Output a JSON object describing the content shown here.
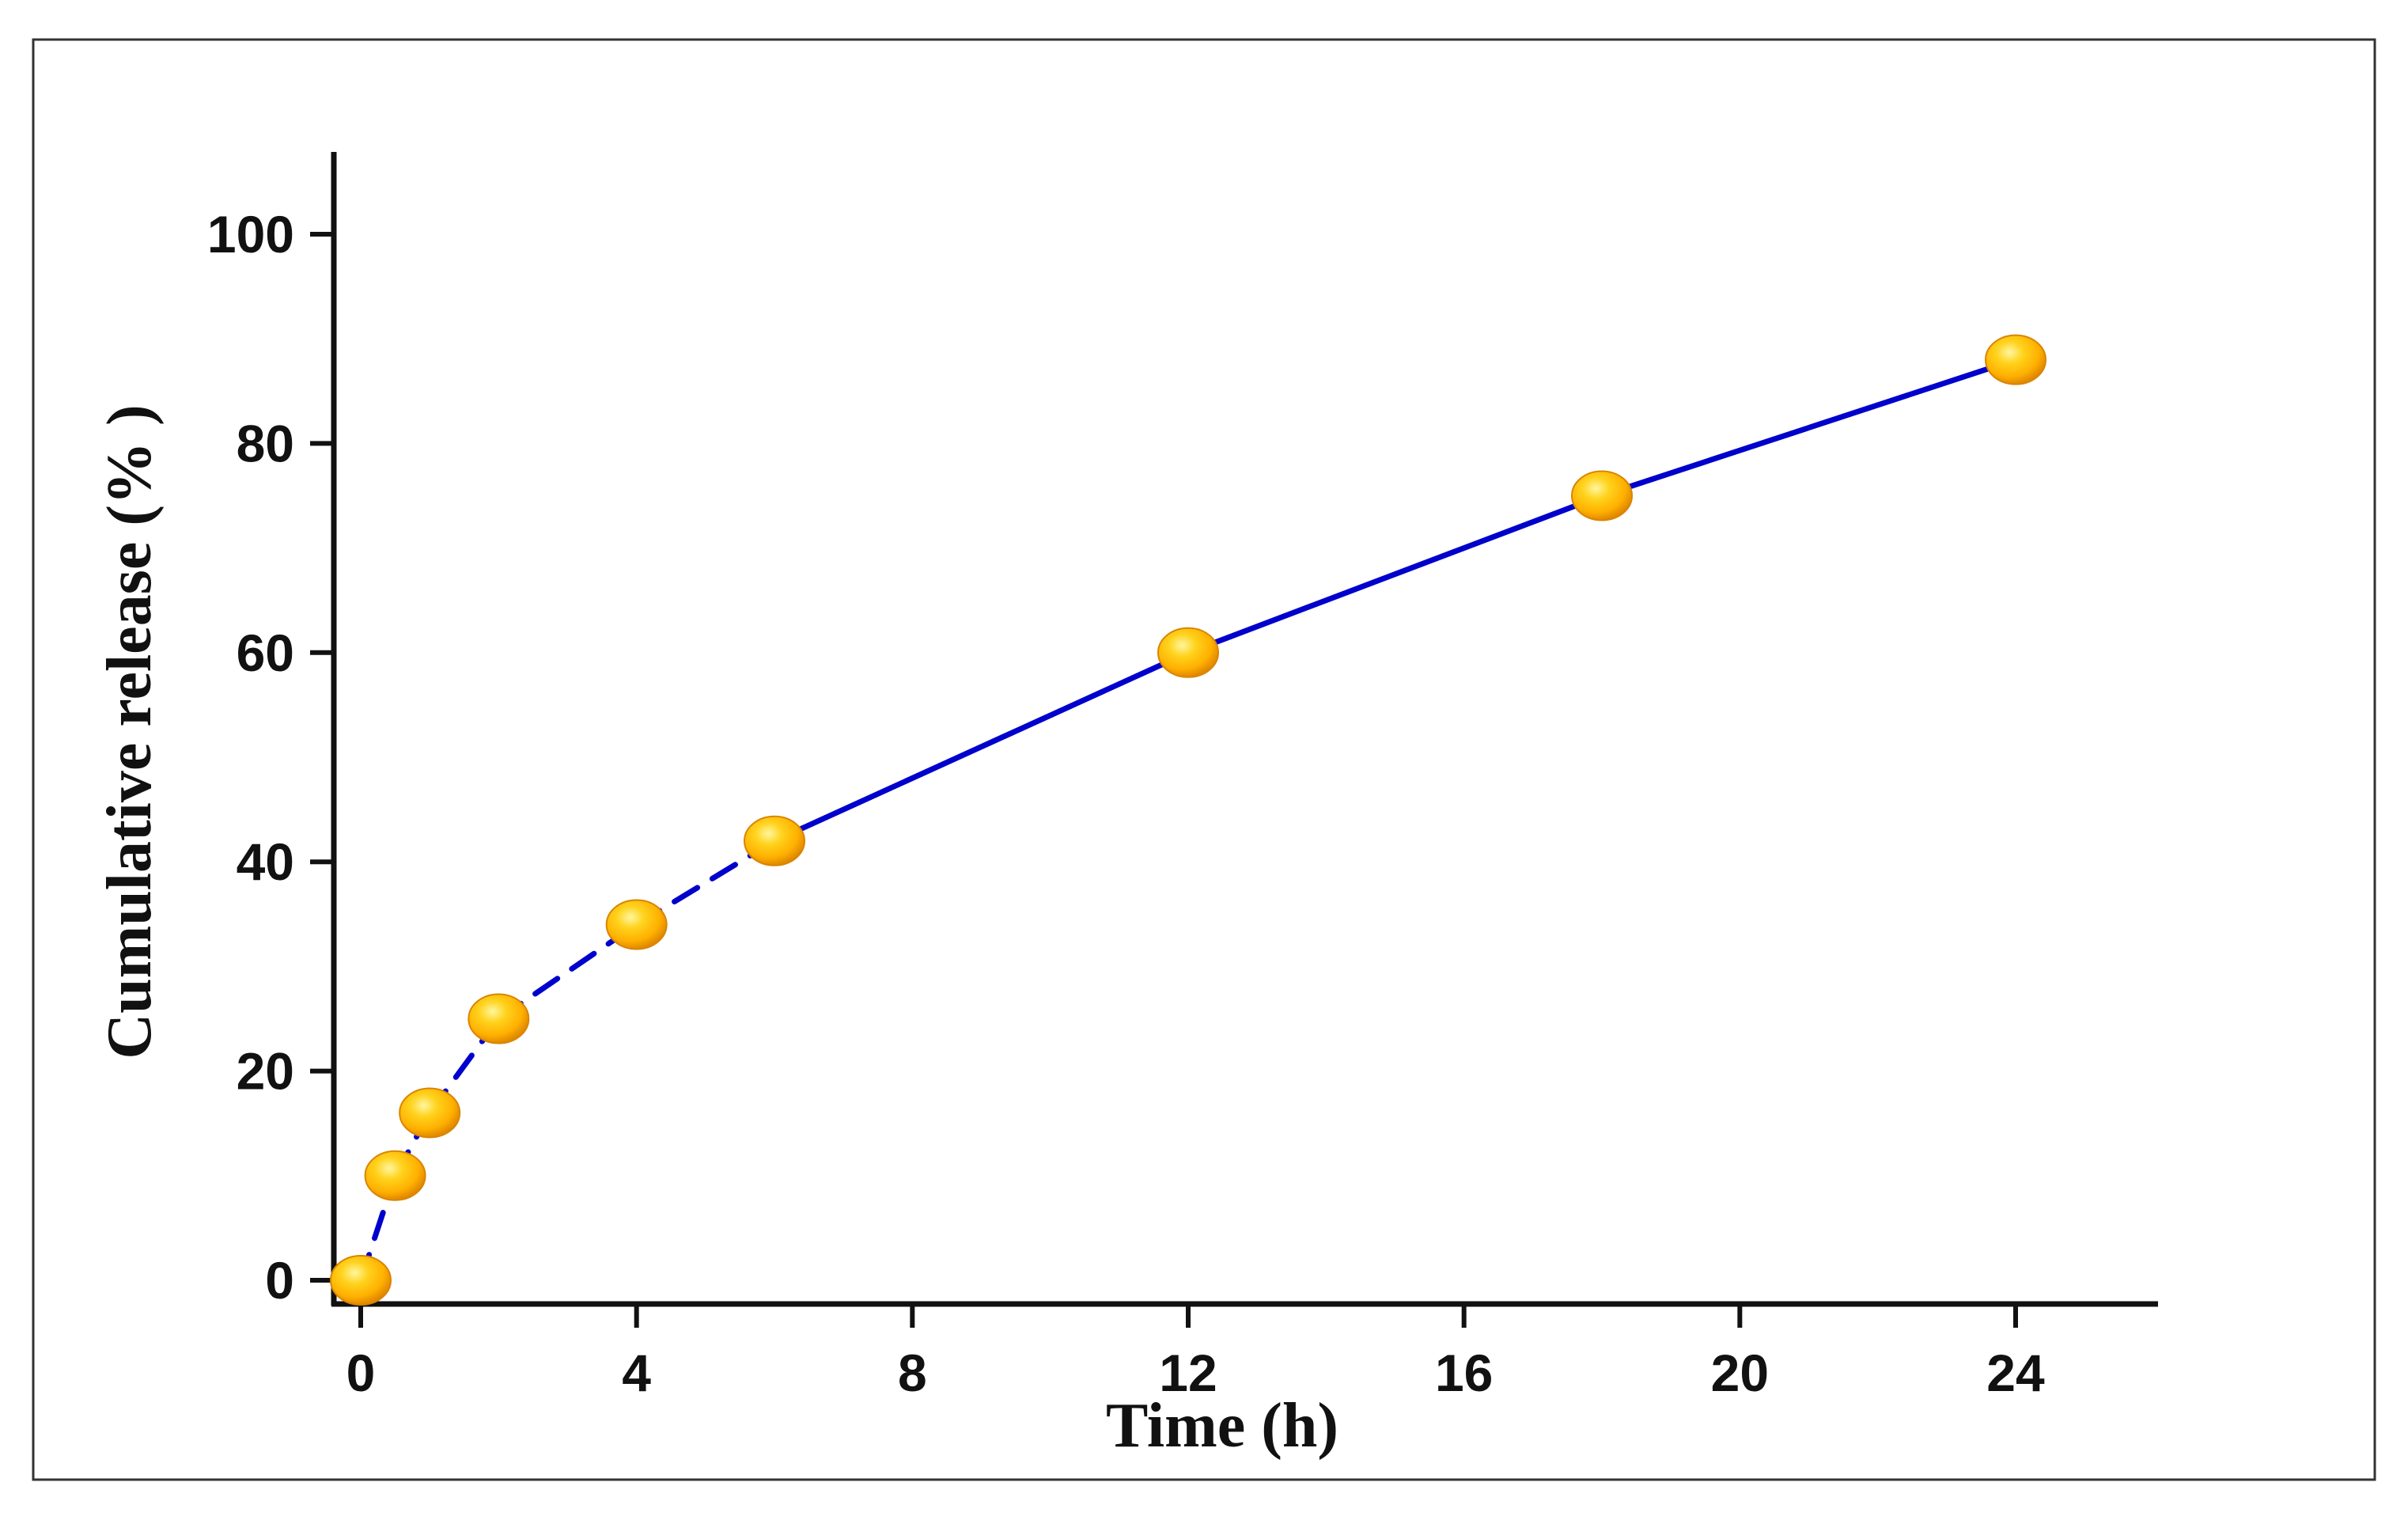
{
  "chart_data": {
    "type": "line",
    "title": "",
    "xlabel": "Time (h)",
    "ylabel": "Cumulative release (% )",
    "xlim": [
      -1,
      26.5
    ],
    "ylim": [
      -2,
      108
    ],
    "x_ticks": [
      0,
      4,
      8,
      12,
      16,
      20,
      24
    ],
    "y_ticks": [
      0,
      20,
      40,
      60,
      80,
      100
    ],
    "x_tick_labels": [
      "0",
      "4",
      "8",
      "12",
      "16",
      "20",
      "24"
    ],
    "y_tick_labels": [
      "0",
      "20",
      "40",
      "60",
      "80",
      "100"
    ],
    "grid": false,
    "legend": "none",
    "series": [
      {
        "x": [
          0,
          0.5,
          1,
          2,
          4,
          6,
          12,
          18,
          24
        ],
        "y": [
          0,
          10,
          16,
          25,
          34,
          42,
          60,
          75,
          88
        ],
        "line_color": "#0000cc",
        "marker_color": "#ffb000",
        "line_style": "dashed-solid"
      }
    ]
  },
  "colors": {
    "frame": "#333333",
    "axis": "#111111",
    "line": "#0000cc",
    "marker_fill": "#ffb000",
    "marker_highlight": "#fff6a0",
    "marker_edge": "#d98500"
  }
}
